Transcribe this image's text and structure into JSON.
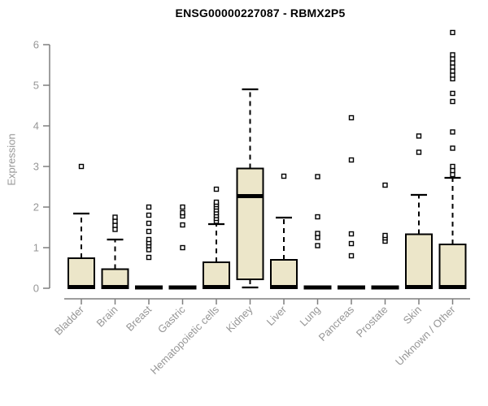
{
  "chart_data": {
    "type": "boxplot",
    "title": "ENSG00000227087 - RBMX2P5",
    "ylabel": "Expression",
    "xlabel": "",
    "ylim": [
      0,
      6.4
    ],
    "yticks": [
      0,
      1,
      2,
      3,
      4,
      5,
      6
    ],
    "grid": false,
    "legend": "none",
    "categories": [
      "Bladder",
      "Brain",
      "Breast",
      "Gastric",
      "Hematopoietic cells",
      "Kidney",
      "Liver",
      "Lung",
      "Pancreas",
      "Prostate",
      "Skin",
      "Unknown / Other"
    ],
    "boxes": [
      {
        "label": "Bladder",
        "whisker_low": 0,
        "q1": 0,
        "median": 0.03,
        "q3": 0.74,
        "whisker_high": 1.84,
        "outliers": [
          3.0
        ]
      },
      {
        "label": "Brain",
        "whisker_low": 0,
        "q1": 0,
        "median": 0.03,
        "q3": 0.47,
        "whisker_high": 1.2,
        "outliers": [
          1.45,
          1.55,
          1.65,
          1.75
        ]
      },
      {
        "label": "Breast",
        "whisker_low": 0,
        "q1": 0,
        "median": 0.02,
        "q3": 0.02,
        "whisker_high": 0.02,
        "outliers": [
          0.76,
          0.95,
          1.05,
          1.12,
          1.2,
          1.4,
          1.6,
          1.8,
          2.0
        ]
      },
      {
        "label": "Gastric",
        "whisker_low": 0,
        "q1": 0,
        "median": 0.02,
        "q3": 0.02,
        "whisker_high": 0.02,
        "outliers": [
          1.0,
          1.56,
          1.78,
          1.86,
          2.0
        ]
      },
      {
        "label": "Hematopoietic cells",
        "whisker_low": 0,
        "q1": 0,
        "median": 0.03,
        "q3": 0.64,
        "whisker_high": 1.58,
        "outliers": [
          1.65,
          1.72,
          1.79,
          1.86,
          1.93,
          2.0,
          2.06,
          2.12,
          2.44
        ]
      },
      {
        "label": "Kidney",
        "whisker_low": 0.02,
        "q1": 0.22,
        "median": 2.27,
        "q3": 2.95,
        "whisker_high": 4.9,
        "outliers": []
      },
      {
        "label": "Liver",
        "whisker_low": 0,
        "q1": 0,
        "median": 0.03,
        "q3": 0.7,
        "whisker_high": 1.74,
        "outliers": [
          2.76
        ]
      },
      {
        "label": "Lung",
        "whisker_low": 0,
        "q1": 0,
        "median": 0.02,
        "q3": 0.02,
        "whisker_high": 0.02,
        "outliers": [
          1.05,
          1.25,
          1.35,
          1.76,
          2.75
        ]
      },
      {
        "label": "Pancreas",
        "whisker_low": 0,
        "q1": 0,
        "median": 0.02,
        "q3": 0.02,
        "whisker_high": 0.02,
        "outliers": [
          0.8,
          1.1,
          1.34,
          3.16,
          4.2
        ]
      },
      {
        "label": "Prostate",
        "whisker_low": 0,
        "q1": 0,
        "median": 0.02,
        "q3": 0.02,
        "whisker_high": 0.02,
        "outliers": [
          1.16,
          1.24,
          1.3,
          2.54
        ]
      },
      {
        "label": "Skin",
        "whisker_low": 0,
        "q1": 0,
        "median": 0.03,
        "q3": 1.33,
        "whisker_high": 2.3,
        "outliers": [
          3.35,
          3.75
        ]
      },
      {
        "label": "Unknown / Other",
        "whisker_low": 0,
        "q1": 0,
        "median": 0.03,
        "q3": 1.08,
        "whisker_high": 2.72,
        "outliers": [
          2.8,
          2.9,
          3.0,
          3.45,
          3.85,
          4.6,
          4.8,
          5.16,
          5.25,
          5.35,
          5.45,
          5.55,
          5.65,
          5.75,
          6.3
        ]
      }
    ],
    "colors": {
      "box_fill": "#ece6c9",
      "box_border": "#000000",
      "median": "#000000",
      "whisker": "#000000",
      "outlier_fill": "#ffffff",
      "outlier_border": "#000000",
      "axis_line": "#7f7f7f",
      "axis_text": "#969696",
      "title_text": "#000000",
      "background": "#ffffff"
    }
  }
}
